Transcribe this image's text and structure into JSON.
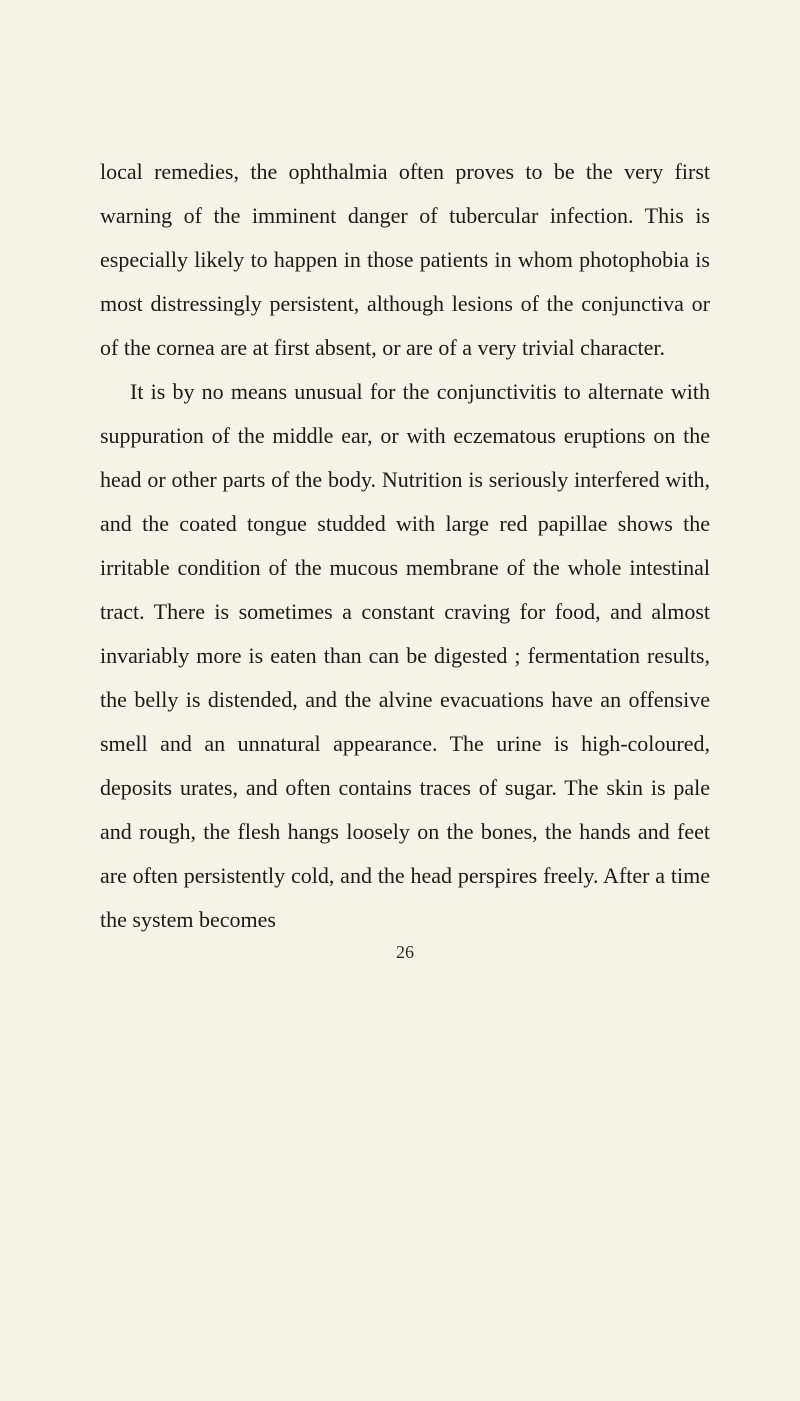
{
  "document": {
    "paragraph1": "local remedies, the ophthalmia often proves to be the very first warning of the imminent danger of tubercular infection. This is especially likely to happen in those patients in whom photophobia is most distressingly persistent, although lesions of the conjunctiva or of the cornea are at first absent, or are of a very trivial character.",
    "paragraph2": "It is by no means unusual for the conjunctivitis to alternate with suppuration of the middle ear, or with eczematous eruptions on the head or other parts of the body. Nutrition is seriously interfered with, and the coated tongue studded with large red papillae shows the irritable condition of the mucous membrane of the whole intestinal tract. There is sometimes a constant craving for food, and almost invariably more is eaten than can be digested ; fermentation results, the belly is distended, and the alvine evacuations have an offensive smell and an unnatural appearance. The urine is high-coloured, deposits urates, and often contains traces of sugar. The skin is pale and rough, the flesh hangs loosely on the bones, the hands and feet are often persistently cold, and the head perspires freely. After a time the system becomes",
    "pageNumber": "26",
    "styling": {
      "backgroundColor": "#f5f2e6",
      "textColor": "#1a1a1a",
      "fontSize": 22,
      "lineHeight": 2,
      "fontFamily": "Georgia, serif",
      "pageWidth": 800,
      "pageHeight": 1401,
      "paddingTop": 150,
      "paddingLeft": 100,
      "paddingRight": 90,
      "textIndent": 30
    }
  }
}
